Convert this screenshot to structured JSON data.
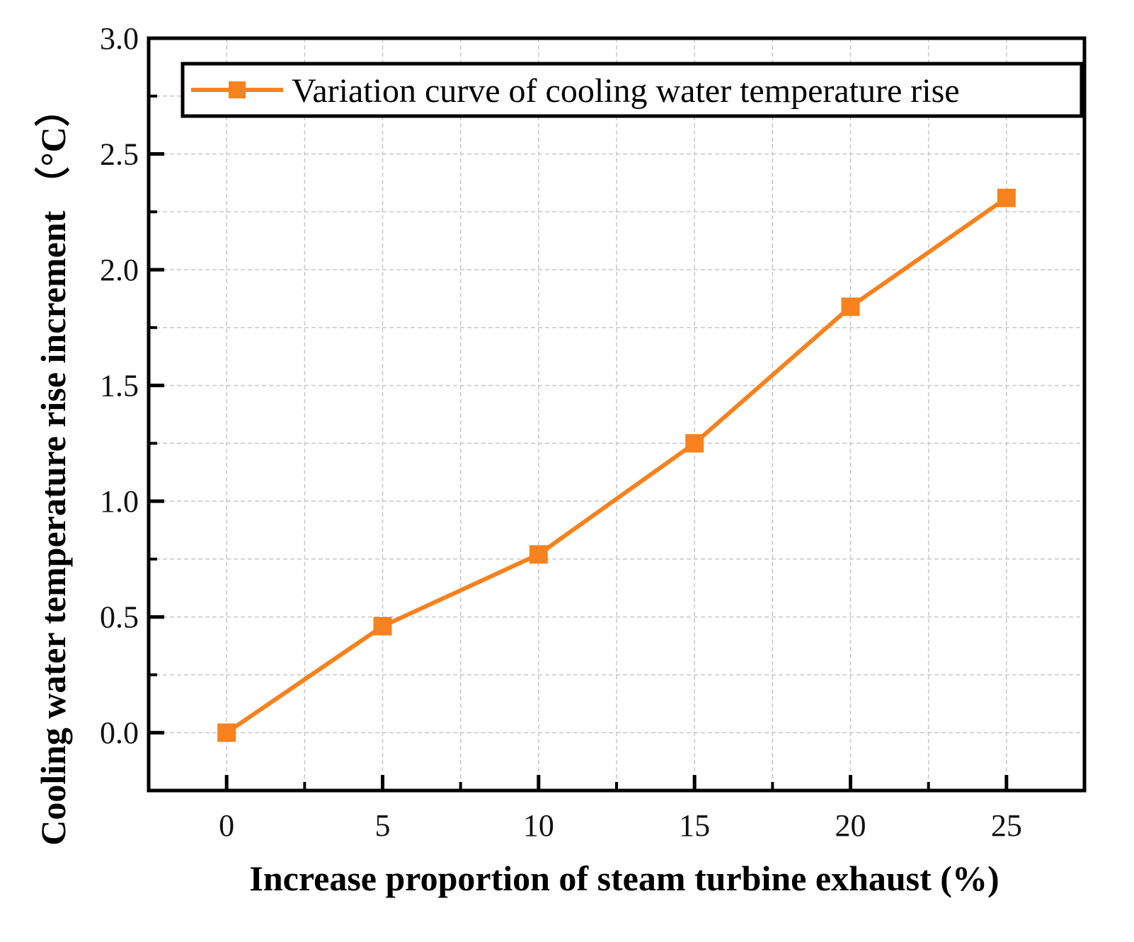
{
  "chart_data": {
    "type": "line",
    "title": "",
    "xlabel": "Increase proportion of steam turbine exhaust (%)",
    "ylabel": "Cooling water temperature rise increment （°C）",
    "xlim": [
      -2.5,
      27.5
    ],
    "ylim": [
      -0.25,
      3.0
    ],
    "xticks": [
      0,
      5,
      10,
      15,
      20,
      25
    ],
    "xtick_labels": [
      "0",
      "5",
      "10",
      "15",
      "20",
      "25"
    ],
    "yticks": [
      0.0,
      0.5,
      1.0,
      1.5,
      2.0,
      2.5,
      3.0
    ],
    "ytick_labels": [
      "0.0",
      "0.5",
      "1.0",
      "1.5",
      "2.0",
      "2.5",
      "3.0"
    ],
    "x_minor_ticks": [
      2.5,
      7.5,
      12.5,
      17.5,
      22.5
    ],
    "y_minor_ticks": [
      0.25,
      0.75,
      1.25,
      1.75,
      2.25,
      2.75
    ],
    "grid": true,
    "legend_position": "top-right",
    "series": [
      {
        "name": "Variation curve of cooling water temperature rise",
        "color": "#f7821e",
        "marker": "square",
        "x": [
          0,
          5,
          10,
          15,
          20,
          25
        ],
        "values": [
          0.0,
          0.46,
          0.77,
          1.25,
          1.84,
          2.31
        ]
      }
    ]
  }
}
